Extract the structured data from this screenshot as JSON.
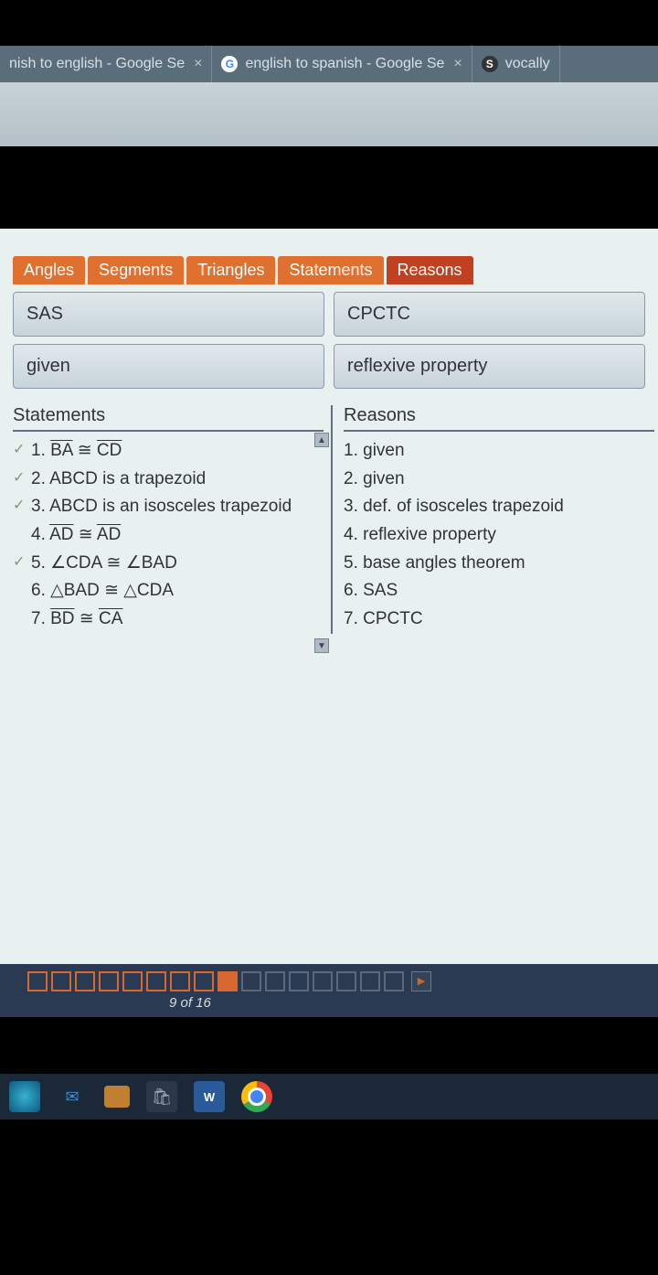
{
  "browser": {
    "tabs": [
      {
        "title": "nish to english - Google Se",
        "favicon": null
      },
      {
        "title": "english to spanish - Google Se",
        "favicon": "G"
      },
      {
        "title": "vocally",
        "favicon": "S"
      }
    ]
  },
  "proof_tabs": {
    "items": [
      "Angles",
      "Segments",
      "Triangles",
      "Statements",
      "Reasons"
    ],
    "active_index": 4,
    "tab_color": "#e07030",
    "active_color": "#c04020"
  },
  "option_boxes": {
    "row1": [
      "SAS",
      "CPCTC"
    ],
    "row2": [
      "given",
      "reflexive property"
    ]
  },
  "proof": {
    "left_header": "Statements",
    "right_header": "Reasons",
    "rows": [
      {
        "check": true,
        "num": "1.",
        "stmt_parts": [
          "BA",
          " ≅ ",
          "CD"
        ],
        "overline": [
          0,
          2
        ],
        "reason": "1. given"
      },
      {
        "check": true,
        "num": "2.",
        "stmt": "ABCD is a trapezoid",
        "reason": "2. given"
      },
      {
        "check": true,
        "num": "3.",
        "stmt": "ABCD is an isosceles trapezoid",
        "reason": "3. def. of isosceles trapezoid"
      },
      {
        "check": false,
        "num": "4.",
        "stmt_parts": [
          "AD",
          " ≅ ",
          "AD"
        ],
        "overline": [
          0,
          2
        ],
        "reason": "4. reflexive property"
      },
      {
        "check": true,
        "num": "5.",
        "stmt": "∠CDA ≅ ∠BAD",
        "reason": "5. base angles theorem"
      },
      {
        "check": false,
        "num": "6.",
        "stmt": "△BAD ≅ △CDA",
        "reason": "6. SAS"
      },
      {
        "check": false,
        "num": "7.",
        "stmt_parts": [
          "BD",
          " ≅ ",
          "CA"
        ],
        "overline": [
          0,
          2
        ],
        "reason": "7. CPCTC"
      }
    ]
  },
  "navigation": {
    "total": 16,
    "current": 9,
    "label": "9 of 16",
    "squares": [
      "open",
      "open",
      "open",
      "open",
      "open",
      "open",
      "open",
      "open",
      "filled",
      "muted",
      "muted",
      "muted",
      "muted",
      "muted",
      "muted",
      "muted"
    ]
  },
  "taskbar": {
    "items": [
      "edge",
      "mail",
      "files",
      "store",
      "word",
      "chrome"
    ]
  },
  "colors": {
    "page_bg": "#e8f0f0",
    "nav_bg": "#2a3a52",
    "taskbar_bg": "#1a2838",
    "chrome_bg": "#5a6d7a"
  }
}
